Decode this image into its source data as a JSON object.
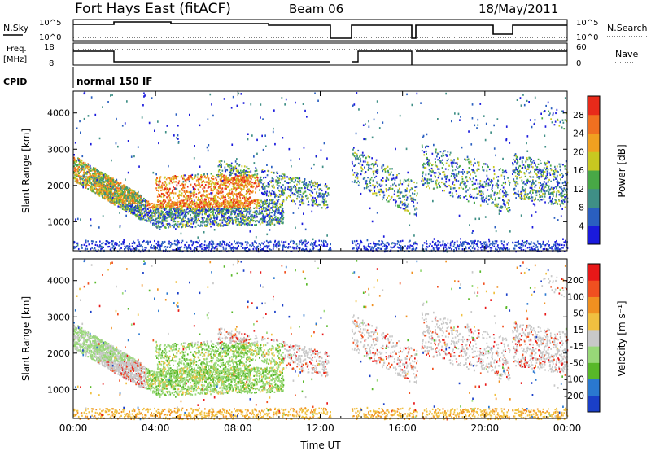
{
  "header": {
    "station": "Fort Hays East (fitACF)",
    "beam": "Beam 06",
    "date": "18/May/2011"
  },
  "panels": {
    "nsky": {
      "label": "N.Sky",
      "right_label": "N.Search",
      "tick_top": "10^5",
      "tick_bottom": "10^0"
    },
    "freq": {
      "label_line1": "Freq.",
      "label_line2": "[MHz]",
      "left_ticks": [
        "18",
        "8"
      ],
      "right_ticks": [
        "60",
        "0"
      ],
      "right_label": "Nave"
    },
    "cpid": {
      "label": "CPID",
      "value": "normal 150 IF"
    }
  },
  "chart_data": [
    {
      "type": "heatmap",
      "name": "power",
      "ylabel": "Slant Range [km]",
      "xlabel": "",
      "y_ticks": [
        1000,
        2000,
        3000,
        4000
      ],
      "ylim": [
        200,
        4600
      ],
      "x_ticks": [
        "00:00",
        "04:00",
        "08:00",
        "12:00",
        "16:00",
        "20:00",
        "00:00"
      ],
      "xlim_hours": [
        0,
        24
      ],
      "colorbar": {
        "label": "Power [dB]",
        "ticks": [
          4,
          8,
          12,
          16,
          20,
          24,
          28
        ],
        "colors": [
          "#1a1adc",
          "#2a5fc0",
          "#3f8f86",
          "#48a846",
          "#c8c820",
          "#f0a020",
          "#f07020",
          "#e82a1a"
        ]
      },
      "data_gaps_hours": [
        [
          12.5,
          13.5
        ],
        [
          16.7,
          16.85
        ],
        [
          21.2,
          21.3
        ]
      ]
    },
    {
      "type": "heatmap",
      "name": "velocity",
      "ylabel": "Slant Range [km]",
      "xlabel": "Time UT",
      "y_ticks": [
        1000,
        2000,
        3000,
        4000
      ],
      "ylim": [
        200,
        4600
      ],
      "x_ticks": [
        "00:00",
        "04:00",
        "08:00",
        "12:00",
        "16:00",
        "20:00",
        "00:00"
      ],
      "xlim_hours": [
        0,
        24
      ],
      "colorbar": {
        "label": "Velocity [m s⁻¹]",
        "ticks": [
          "200",
          "100",
          "50",
          "15",
          "-15",
          "-50",
          "-100",
          "-200"
        ],
        "colors": [
          "#1a3fc8",
          "#2a78d0",
          "#58b828",
          "#98d878",
          "#c8c8c8",
          "#f0c040",
          "#f09020",
          "#f05020",
          "#e81818"
        ]
      }
    }
  ]
}
